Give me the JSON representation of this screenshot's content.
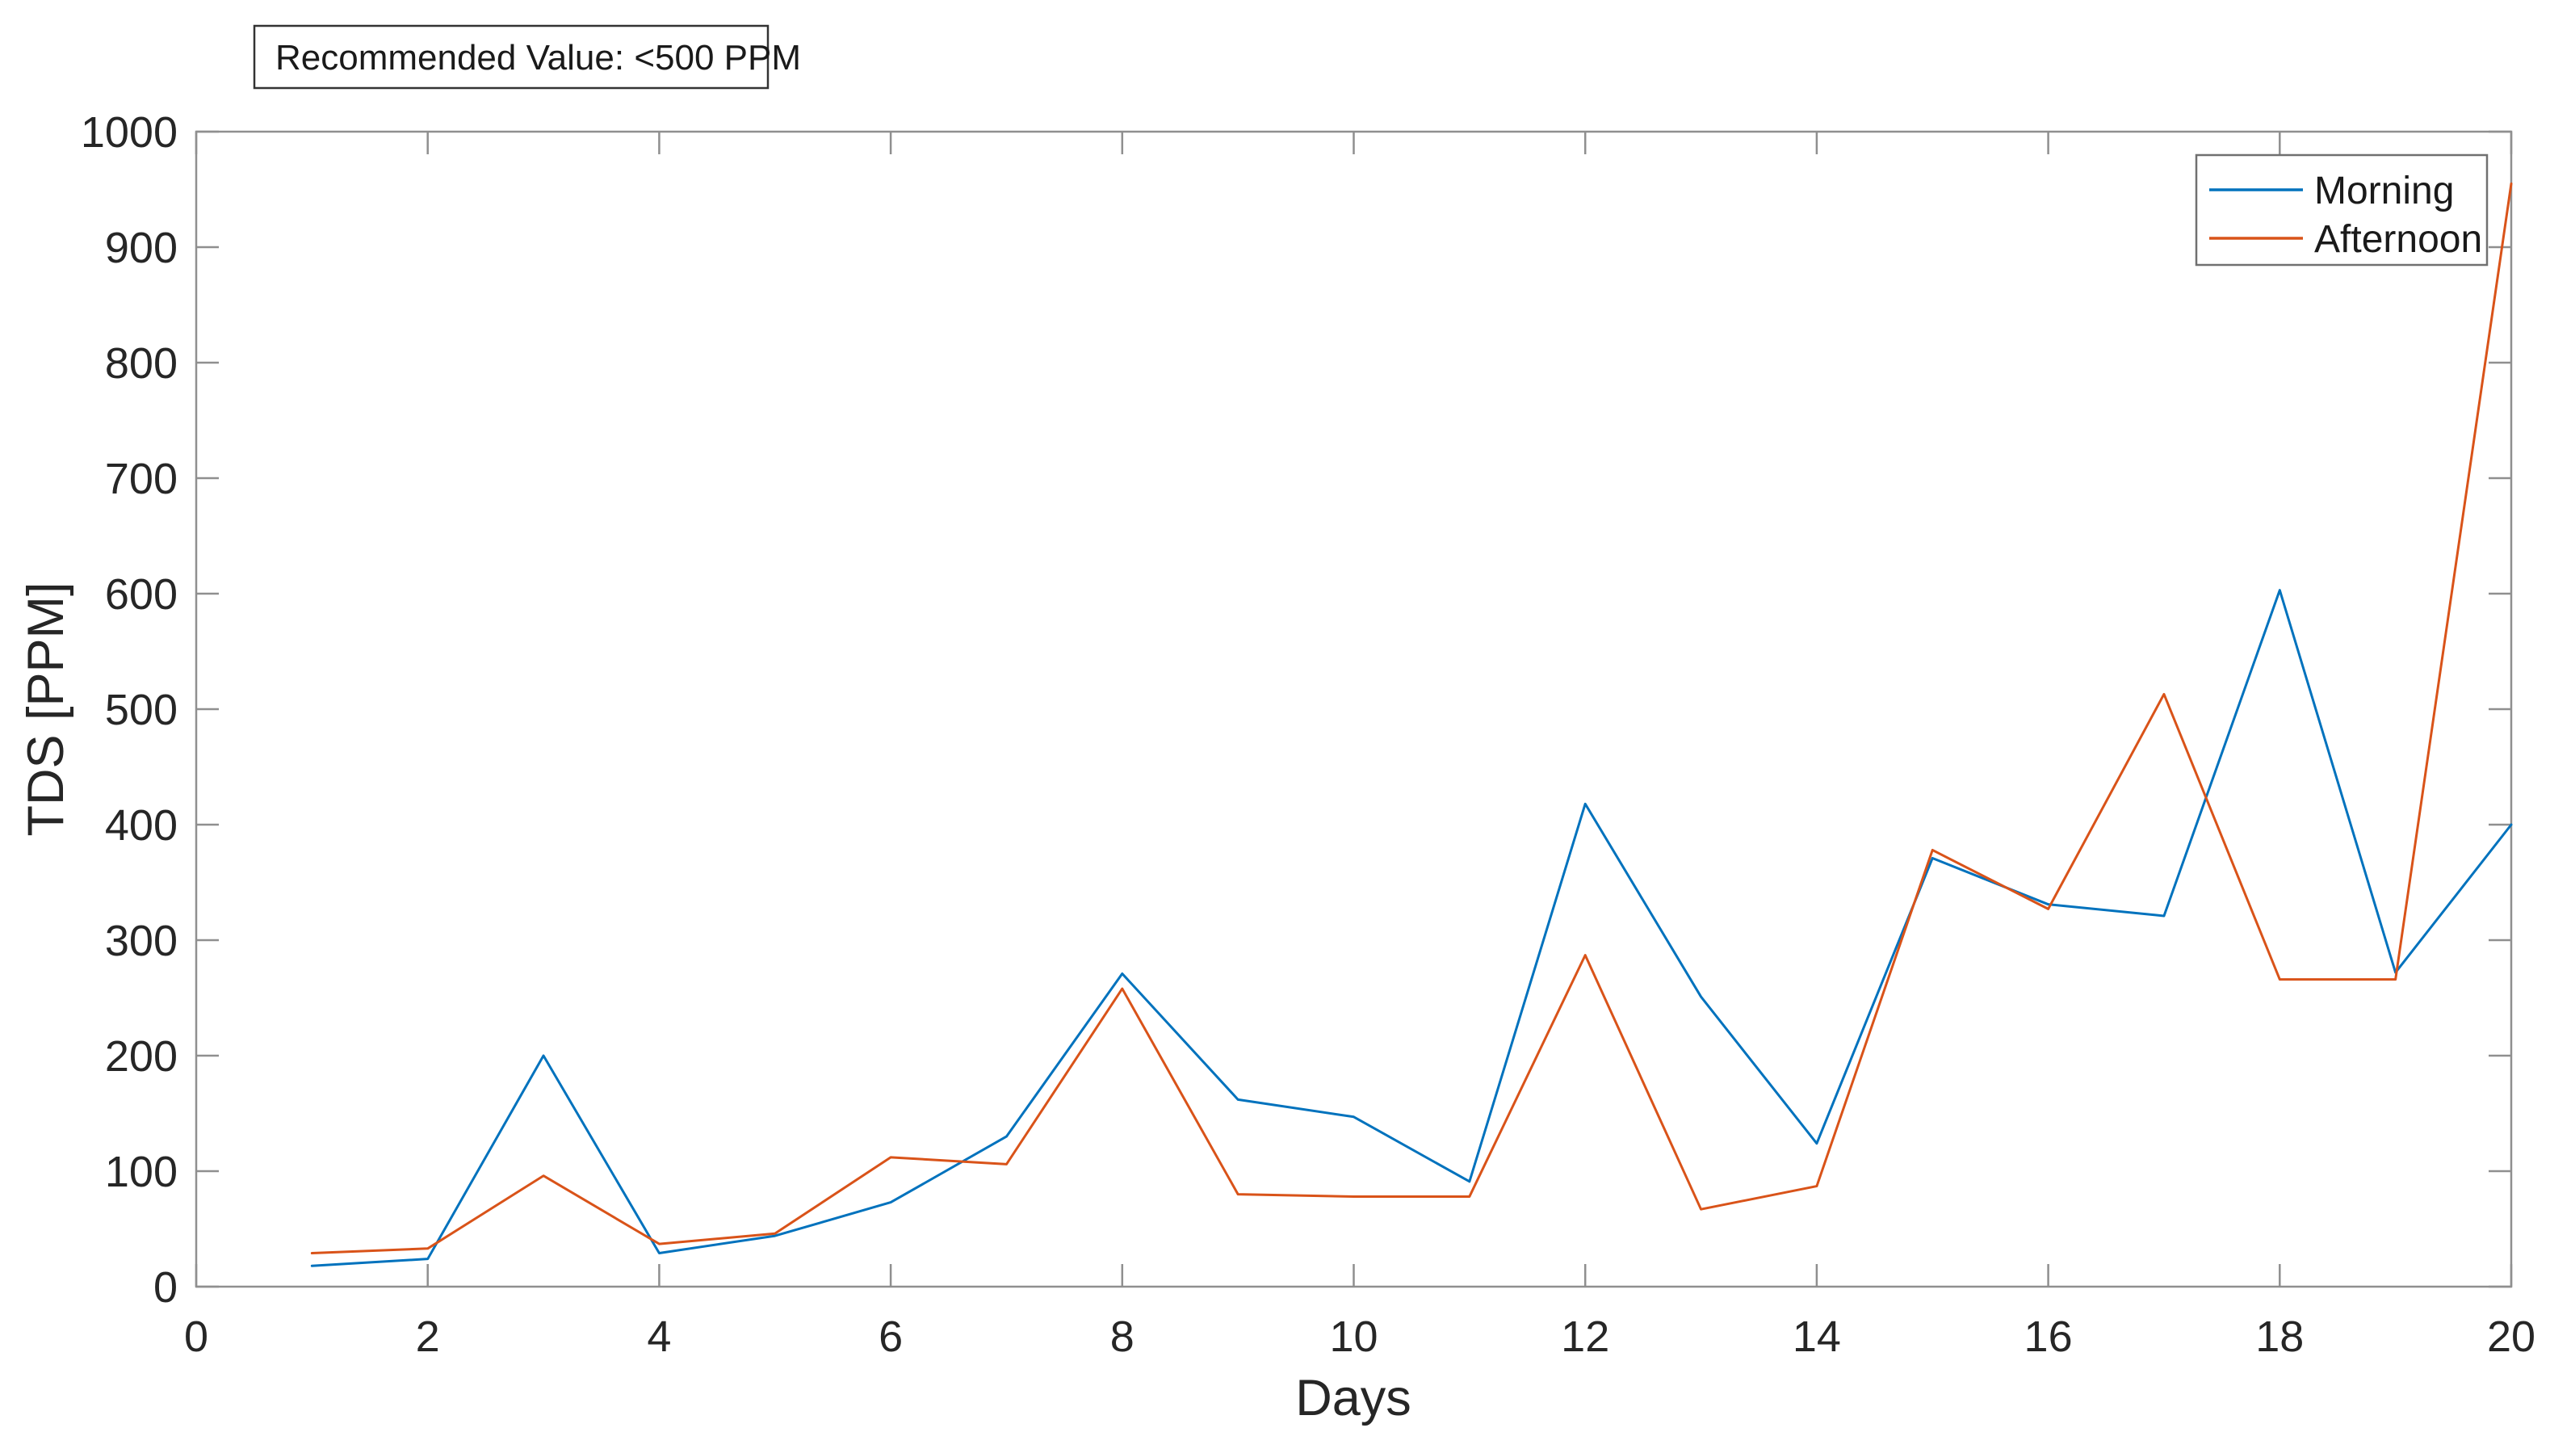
{
  "figure": {
    "background": "#ffffff"
  },
  "annotation": {
    "text": "Recommended Value: <500 PPM"
  },
  "legend": {
    "items": [
      {
        "label": "Morning",
        "color": "#0072BD"
      },
      {
        "label": "Afternoon",
        "color": "#D95319"
      }
    ]
  },
  "axes": {
    "xlabel": "Days",
    "ylabel": "TDS [PPM]",
    "spine_color": "#8f8f8f",
    "text_color": "#262626"
  },
  "chart_data": {
    "type": "line",
    "title": "",
    "xlabel": "Days",
    "ylabel": "TDS [PPM]",
    "x": [
      1,
      2,
      3,
      4,
      5,
      6,
      7,
      8,
      9,
      10,
      11,
      12,
      13,
      14,
      15,
      16,
      17,
      18,
      19,
      20
    ],
    "series": [
      {
        "name": "Morning",
        "color": "#0072BD",
        "values": [
          18,
          24,
          200,
          29,
          44,
          73,
          130,
          271,
          162,
          147,
          91,
          418,
          251,
          124,
          371,
          331,
          321,
          603,
          272,
          400
        ]
      },
      {
        "name": "Afternoon",
        "color": "#D95319",
        "values": [
          29,
          33,
          96,
          37,
          46,
          112,
          106,
          258,
          80,
          78,
          78,
          287,
          67,
          87,
          378,
          327,
          513,
          266,
          266,
          955
        ]
      }
    ],
    "xlim": [
      0,
      20
    ],
    "ylim": [
      0,
      1000
    ],
    "xticks": [
      0,
      2,
      4,
      6,
      8,
      10,
      12,
      14,
      16,
      18,
      20
    ],
    "yticks": [
      0,
      100,
      200,
      300,
      400,
      500,
      600,
      700,
      800,
      900,
      1000
    ],
    "grid": false,
    "legend_position": "top-right",
    "annotation": "Recommended Value: <500 PPM"
  }
}
